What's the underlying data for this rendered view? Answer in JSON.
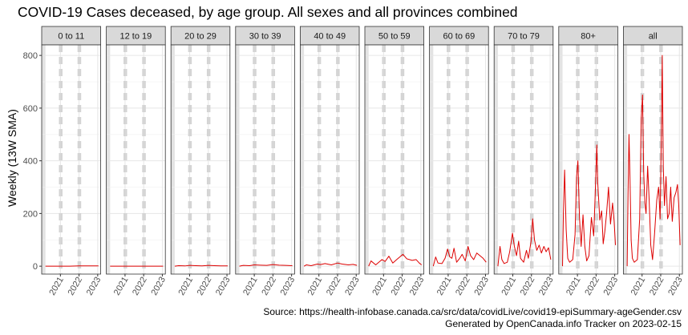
{
  "chart_data": {
    "type": "line",
    "title": "COVID-19 Cases deceased, by age group. All sexes and all provinces combined",
    "ylabel": "Weekly (13W SMA)",
    "xlabel": "",
    "ylim": [
      -30,
      840
    ],
    "y_ticks": [
      0,
      200,
      400,
      600,
      800
    ],
    "x_range": [
      "2020-01-01",
      "2023-03-01"
    ],
    "x_ticks": [
      {
        "date": "2021-01-01",
        "label": "2021"
      },
      {
        "date": "2022-01-01",
        "label": "2022"
      },
      {
        "date": "2023-01-01",
        "label": "2023"
      }
    ],
    "shaded_periods": [
      {
        "start": "2020-01-01",
        "end": "2020-03-15"
      }
    ],
    "dashed_dates": [
      "2020-12-20",
      "2021-01-25",
      "2021-12-20",
      "2022-01-25"
    ],
    "grid": true,
    "line_color": "#dd0000",
    "series": [
      {
        "name": "0 to 11",
        "x": [
          "2020-03-15",
          "2020-07-01",
          "2021-01-01",
          "2021-07-01",
          "2022-01-01",
          "2022-07-01",
          "2023-01-15"
        ],
        "y": [
          0,
          0,
          0,
          0,
          1,
          1,
          1
        ]
      },
      {
        "name": "12 to 19",
        "x": [
          "2020-03-15",
          "2020-07-01",
          "2021-01-01",
          "2021-07-01",
          "2022-01-01",
          "2022-07-01",
          "2023-01-15"
        ],
        "y": [
          0,
          0,
          0,
          0,
          0,
          0,
          0
        ]
      },
      {
        "name": "20 to 29",
        "x": [
          "2020-03-15",
          "2020-06-01",
          "2020-10-01",
          "2021-01-01",
          "2021-05-01",
          "2021-09-01",
          "2022-01-01",
          "2022-05-01",
          "2022-09-01",
          "2023-01-15"
        ],
        "y": [
          0,
          2,
          1,
          3,
          2,
          1,
          3,
          2,
          1,
          1
        ]
      },
      {
        "name": "30 to 39",
        "x": [
          "2020-03-15",
          "2020-06-01",
          "2020-10-01",
          "2021-01-01",
          "2021-05-01",
          "2021-09-01",
          "2022-01-01",
          "2022-05-01",
          "2022-09-01",
          "2023-01-15"
        ],
        "y": [
          0,
          3,
          2,
          5,
          4,
          3,
          6,
          4,
          3,
          2
        ]
      },
      {
        "name": "40 to 49",
        "x": [
          "2020-03-15",
          "2020-05-01",
          "2020-08-01",
          "2020-12-01",
          "2021-02-01",
          "2021-05-01",
          "2021-09-01",
          "2022-01-01",
          "2022-04-01",
          "2022-08-01",
          "2022-11-01",
          "2023-01-15"
        ],
        "y": [
          0,
          5,
          2,
          8,
          6,
          10,
          5,
          12,
          8,
          5,
          7,
          3
        ]
      },
      {
        "name": "50 to 59",
        "x": [
          "2020-03-15",
          "2020-05-01",
          "2020-08-01",
          "2020-12-01",
          "2021-02-01",
          "2021-04-15",
          "2021-07-01",
          "2021-09-15",
          "2022-01-15",
          "2022-04-01",
          "2022-07-15",
          "2022-10-01",
          "2022-12-01",
          "2023-01-15"
        ],
        "y": [
          0,
          20,
          5,
          25,
          18,
          38,
          12,
          25,
          45,
          28,
          22,
          25,
          12,
          5
        ]
      },
      {
        "name": "60 to 69",
        "x": [
          "2020-03-15",
          "2020-05-01",
          "2020-06-15",
          "2020-09-01",
          "2020-11-01",
          "2020-12-20",
          "2021-02-01",
          "2021-03-15",
          "2021-04-25",
          "2021-06-15",
          "2021-08-15",
          "2021-10-01",
          "2021-12-01",
          "2022-01-25",
          "2022-03-15",
          "2022-05-15",
          "2022-07-15",
          "2022-09-15",
          "2022-11-15",
          "2023-01-15"
        ],
        "y": [
          0,
          35,
          12,
          10,
          30,
          65,
          35,
          30,
          68,
          15,
          30,
          45,
          20,
          75,
          40,
          25,
          50,
          40,
          30,
          15
        ]
      },
      {
        "name": "70 to 79",
        "x": [
          "2020-03-15",
          "2020-04-25",
          "2020-06-01",
          "2020-07-15",
          "2020-09-15",
          "2020-11-01",
          "2020-12-25",
          "2021-02-01",
          "2021-03-15",
          "2021-04-25",
          "2021-06-01",
          "2021-08-01",
          "2021-09-25",
          "2021-11-01",
          "2021-12-25",
          "2022-01-25",
          "2022-03-01",
          "2022-04-15",
          "2022-06-01",
          "2022-07-15",
          "2022-09-01",
          "2022-10-15",
          "2022-12-01",
          "2023-01-15"
        ],
        "y": [
          0,
          75,
          25,
          10,
          15,
          55,
          125,
          75,
          40,
          95,
          30,
          15,
          60,
          30,
          95,
          180,
          100,
          60,
          80,
          50,
          75,
          55,
          70,
          25
        ]
      },
      {
        "name": "80+",
        "x": [
          "2020-03-15",
          "2020-04-01",
          "2020-04-25",
          "2020-05-25",
          "2020-06-25",
          "2020-08-01",
          "2020-10-01",
          "2020-11-15",
          "2020-12-15",
          "2021-01-10",
          "2021-02-10",
          "2021-03-15",
          "2021-04-20",
          "2021-05-25",
          "2021-07-01",
          "2021-08-15",
          "2021-10-01",
          "2021-11-15",
          "2021-12-15",
          "2022-01-15",
          "2022-02-01",
          "2022-03-15",
          "2022-04-20",
          "2022-05-20",
          "2022-06-20",
          "2022-07-25",
          "2022-09-01",
          "2022-10-10",
          "2022-11-20",
          "2022-12-20",
          "2023-01-15"
        ],
        "y": [
          0,
          200,
          365,
          140,
          30,
          15,
          25,
          120,
          340,
          400,
          185,
          75,
          195,
          75,
          20,
          40,
          185,
          115,
          275,
          460,
          320,
          175,
          210,
          85,
          130,
          200,
          300,
          160,
          240,
          170,
          80
        ]
      },
      {
        "name": "all",
        "x": [
          "2020-03-15",
          "2020-04-01",
          "2020-04-20",
          "2020-05-10",
          "2020-06-01",
          "2020-06-25",
          "2020-08-01",
          "2020-10-01",
          "2020-11-15",
          "2020-12-15",
          "2021-01-10",
          "2021-02-01",
          "2021-02-25",
          "2021-03-20",
          "2021-04-20",
          "2021-05-20",
          "2021-06-20",
          "2021-07-25",
          "2021-09-01",
          "2021-10-15",
          "2021-11-20",
          "2021-12-20",
          "2022-01-15",
          "2022-01-31",
          "2022-02-20",
          "2022-03-15",
          "2022-04-15",
          "2022-05-15",
          "2022-06-15",
          "2022-07-15",
          "2022-08-15",
          "2022-09-20",
          "2022-10-25",
          "2022-11-25",
          "2022-12-20",
          "2023-01-15"
        ],
        "y": [
          0,
          270,
          500,
          330,
          100,
          30,
          15,
          25,
          180,
          560,
          650,
          360,
          240,
          200,
          380,
          250,
          80,
          25,
          120,
          250,
          300,
          180,
          520,
          800,
          380,
          230,
          340,
          180,
          200,
          300,
          170,
          260,
          280,
          310,
          230,
          80
        ]
      }
    ]
  },
  "source": "Source: https://health-infobase.canada.ca/src/data/covidLive/covid19-epiSummary-ageGender.csv",
  "generated": "Generated by OpenCanada.info Tracker on 2023-02-15"
}
